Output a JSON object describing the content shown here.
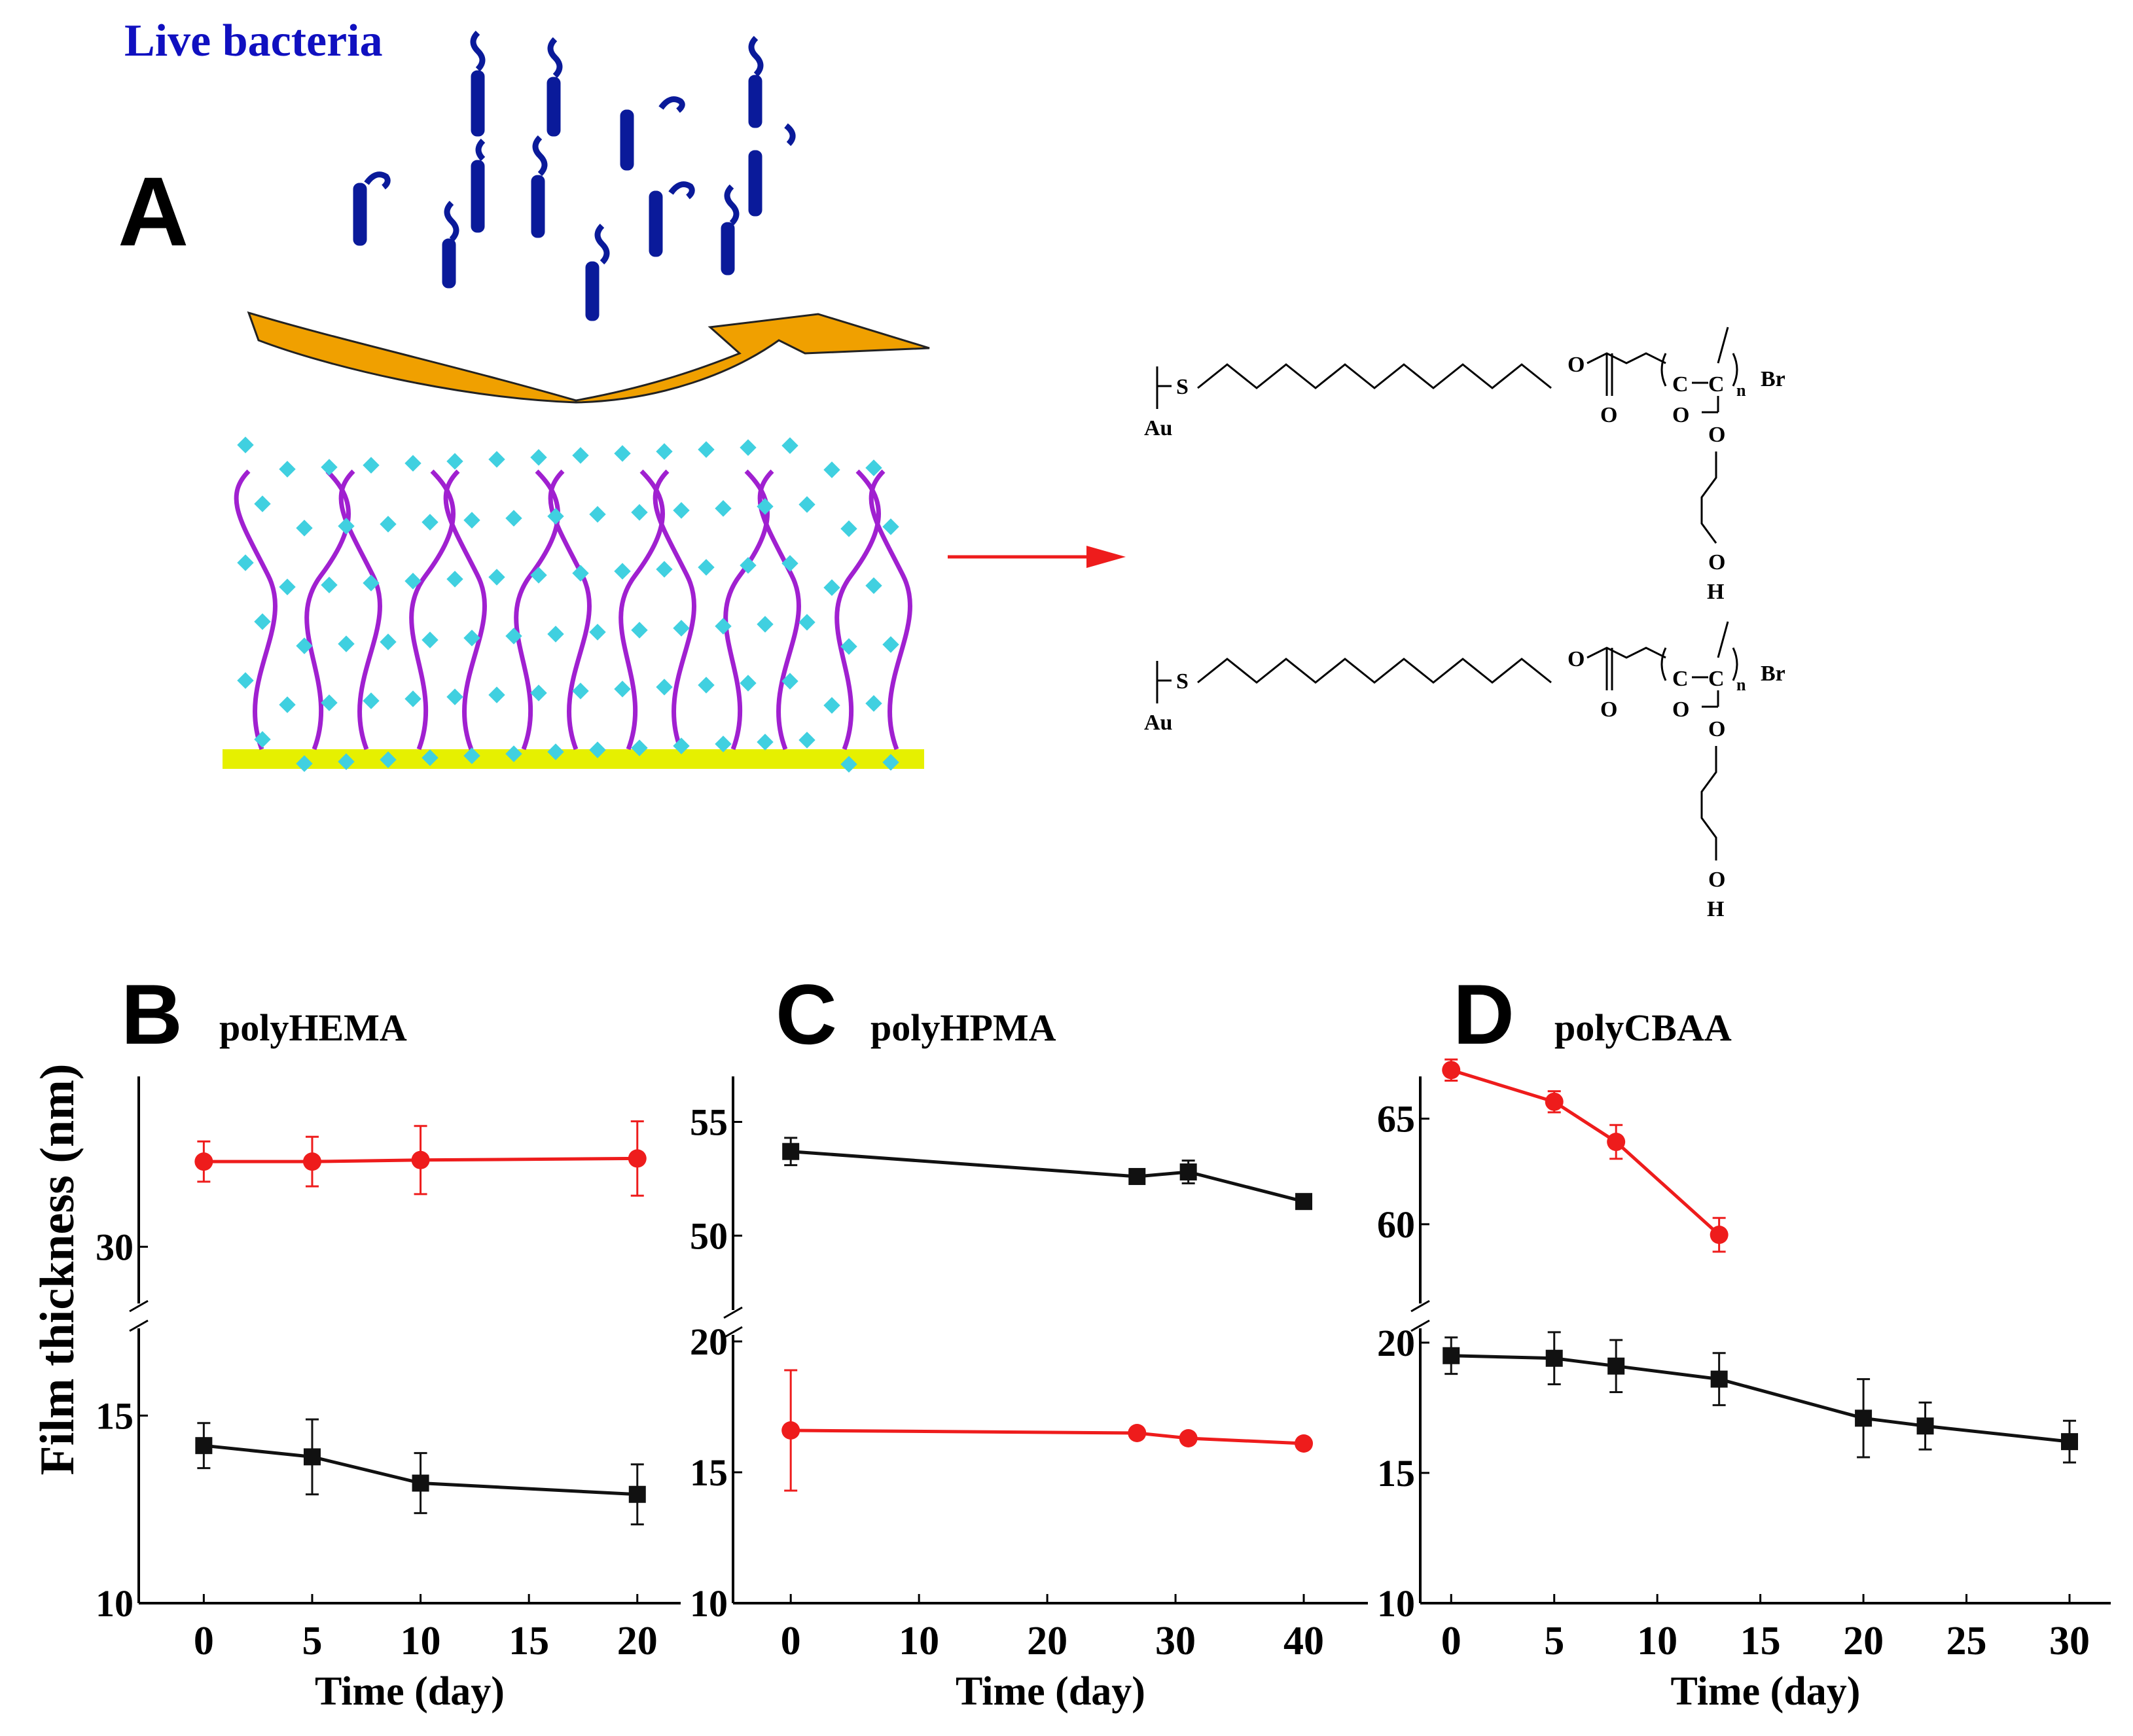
{
  "panel_a": {
    "letter": "A",
    "live_bacteria_label": "Live bacteria",
    "structure_top": {
      "anchor": "Au",
      "sulfur": "S",
      "ether_oxygen": "O",
      "carbonyl_oxygen": "O",
      "backbone_carbon_1": "C",
      "backbone_carbon_2": "C",
      "repeat_index": "n",
      "end_group": "Br",
      "side_carbonyl_oxygen": "O",
      "side_ester_oxygen": "O",
      "hydroxyl_o": "O",
      "hydroxyl_h": "H"
    },
    "structure_bottom": {
      "anchor": "Au",
      "sulfur": "S",
      "ether_oxygen": "O",
      "carbonyl_oxygen": "O",
      "backbone_carbon_1": "C",
      "backbone_carbon_2": "C",
      "repeat_index": "n",
      "end_group": "Br",
      "side_carbonyl_oxygen": "O",
      "side_ester_oxygen": "O",
      "hydroxyl_o": "O",
      "hydroxyl_h": "H"
    }
  },
  "colors": {
    "series_red": "#ee1c1c",
    "series_black": "#111111",
    "bacteria": "#0a1a9a",
    "arrow_gold": "#f0a000",
    "brush": "#a020d0",
    "water": "#40d0e0",
    "substrate": "#e6f000",
    "label_blue": "#1010c0"
  },
  "y_axis_label": "Film thickness (nm)",
  "chart_data": [
    {
      "panel": "B",
      "type": "line",
      "title": "polyHEMA",
      "xlabel": "Time (day)",
      "ylabel": "Film thickness (nm)",
      "xlim": [
        -3,
        22
      ],
      "xticks": [
        "0",
        "5",
        "10",
        "15",
        "20"
      ],
      "broken_axis": true,
      "upper_ylim": [
        26,
        41
      ],
      "upper_yticks": [
        "30"
      ],
      "lower_ylim": [
        10,
        17.5
      ],
      "lower_yticks": [
        "10",
        "15"
      ],
      "series": [
        {
          "name": "red",
          "color": "#ee1c1c",
          "axis": "upper",
          "marker": "circle",
          "x": [
            0,
            5,
            10,
            20
          ],
          "values": [
            35.5,
            35.5,
            35.6,
            35.7
          ],
          "errors": [
            1.3,
            1.6,
            2.2,
            2.4
          ]
        },
        {
          "name": "black",
          "color": "#111111",
          "axis": "lower",
          "marker": "square",
          "x": [
            0,
            5,
            10,
            20
          ],
          "values": [
            14.2,
            13.9,
            13.2,
            12.9
          ],
          "errors": [
            0.6,
            1.0,
            0.8,
            0.8
          ]
        }
      ]
    },
    {
      "panel": "C",
      "type": "line",
      "title": "polyHPMA",
      "xlabel": "Time (day)",
      "ylabel": "",
      "xlim": [
        -4.5,
        45
      ],
      "xticks": [
        "0",
        "10",
        "20",
        "30",
        "40"
      ],
      "broken_axis": true,
      "upper_ylim": [
        46.5,
        57
      ],
      "upper_yticks": [
        "50",
        "55"
      ],
      "lower_ylim": [
        10,
        20.5
      ],
      "lower_yticks": [
        "10",
        "15",
        "20"
      ],
      "series": [
        {
          "name": "black",
          "color": "#111111",
          "axis": "upper",
          "marker": "square",
          "x": [
            0,
            27,
            31,
            40
          ],
          "values": [
            53.7,
            52.6,
            52.8,
            51.5
          ],
          "errors": [
            0.6,
            0.3,
            0.5,
            0.3
          ]
        },
        {
          "name": "red",
          "color": "#ee1c1c",
          "axis": "lower",
          "marker": "circle",
          "x": [
            0,
            27,
            31,
            40
          ],
          "values": [
            16.6,
            16.5,
            16.3,
            16.1
          ],
          "errors": [
            2.3,
            0.2,
            0.2,
            0.2
          ]
        }
      ]
    },
    {
      "panel": "D",
      "type": "line",
      "title": "polyCBAA",
      "xlabel": "Time (day)",
      "ylabel": "",
      "xlim": [
        -1.5,
        32
      ],
      "xticks": [
        "0",
        "5",
        "10",
        "15",
        "20",
        "25",
        "30"
      ],
      "broken_axis": true,
      "upper_ylim": [
        56,
        67
      ],
      "upper_yticks": [
        "60",
        "65"
      ],
      "lower_ylim": [
        10,
        20.8
      ],
      "lower_yticks": [
        "10",
        "15",
        "20"
      ],
      "series": [
        {
          "name": "red",
          "color": "#ee1c1c",
          "axis": "upper",
          "marker": "circle",
          "x": [
            0,
            5,
            8,
            13
          ],
          "values": [
            67.3,
            65.8,
            63.9,
            59.5
          ],
          "errors": [
            0.5,
            0.5,
            0.8,
            0.8
          ]
        },
        {
          "name": "black",
          "color": "#111111",
          "axis": "lower",
          "marker": "square",
          "x": [
            0,
            5,
            8,
            13,
            20,
            23,
            30
          ],
          "values": [
            19.5,
            19.4,
            19.1,
            18.6,
            17.1,
            16.8,
            16.2
          ],
          "errors": [
            0.7,
            1.0,
            1.0,
            1.0,
            1.5,
            0.9,
            0.8
          ]
        }
      ]
    }
  ]
}
